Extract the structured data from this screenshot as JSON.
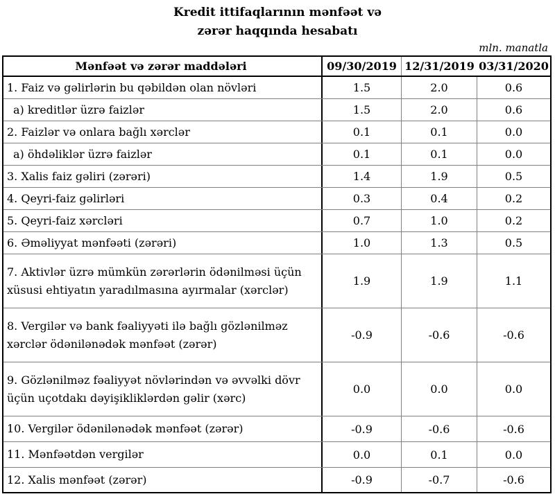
{
  "page": {
    "title_line1": "Kredit ittifaqlarının mənfəət və",
    "title_line2": "zərər haqqında hesabatı",
    "unit_note": "mln. manatla"
  },
  "table": {
    "header": {
      "items_label": "Mənfəət və zərər maddələri",
      "col1": "09/30/2019",
      "col2": "12/31/2019",
      "col3": "03/31/2020"
    },
    "rows": [
      {
        "label": "1. Faiz və gəlirlərin bu qəbildən olan növləri",
        "v1": "1.5",
        "v2": "2.0",
        "v3": "0.6"
      },
      {
        "label": "a) kreditlər üzrə faizlər",
        "v1": "1.5",
        "v2": "2.0",
        "v3": "0.6"
      },
      {
        "label": "2. Faizlər və onlara bağlı xərclər",
        "v1": "0.1",
        "v2": "0.1",
        "v3": "0.0"
      },
      {
        "label": "a) öhdəliklər üzrə faizlər",
        "v1": "0.1",
        "v2": "0.1",
        "v3": "0.0"
      },
      {
        "label": "3. Xalis faiz gəliri (zərəri)",
        "v1": "1.4",
        "v2": "1.9",
        "v3": "0.5"
      },
      {
        "label": "4. Qeyri-faiz gəlirləri",
        "v1": "0.3",
        "v2": "0.4",
        "v3": "0.2"
      },
      {
        "label": "5. Qeyri-faiz xərcləri",
        "v1": "0.7",
        "v2": "1.0",
        "v3": "0.2"
      },
      {
        "label": "6. Əməliyyat mənfəəti (zərəri)",
        "v1": "1.0",
        "v2": "1.3",
        "v3": "0.5"
      },
      {
        "label": "7. Aktivlər üzrə mümkün zərərlərin ödənilməsi üçün xüsusi ehtiyatın yaradılmasına ayırmalar (xərclər)",
        "v1": "1.9",
        "v2": "1.9",
        "v3": "1.1"
      },
      {
        "label": "8. Vergilər və bank fəaliyyəti ilə bağlı gözlənilməz xərclər ödənilənədək mənfəət (zərər)",
        "v1": "-0.9",
        "v2": "-0.6",
        "v3": "-0.6"
      },
      {
        "label": "9. Gözlənilməz fəaliyyət növlərindən və əvvəlki dövr üçün uçotdakı dəyişikliklərdən gəlir (xərc)",
        "v1": "0.0",
        "v2": "0.0",
        "v3": "0.0"
      },
      {
        "label": "10. Vergilər ödənilənədək mənfəət (zərər)",
        "v1": "-0.9",
        "v2": "-0.6",
        "v3": "-0.6"
      },
      {
        "label": "11. Mənfəətdən vergilər",
        "v1": "0.0",
        "v2": "0.1",
        "v3": "0.0"
      },
      {
        "label": "12. Xalis mənfəət (zərər)",
        "v1": "-0.9",
        "v2": "-0.7",
        "v3": "-0.6"
      }
    ]
  },
  "colors": {
    "background": "#ffffff",
    "text": "#000000",
    "border_strong": "#000000",
    "border_light": "#7f7f7f"
  }
}
